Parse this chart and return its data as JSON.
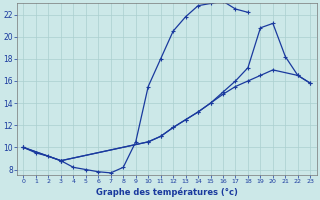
{
  "xlabel": "Graphe des températures (°c)",
  "bg_color": "#cce8e8",
  "line_color": "#1a3a9e",
  "grid_color": "#aacfcf",
  "axis_label_color": "#1a3a9e",
  "xlim": [
    -0.5,
    23.5
  ],
  "ylim": [
    7.5,
    23.0
  ],
  "xticks": [
    0,
    1,
    2,
    3,
    4,
    5,
    6,
    7,
    8,
    9,
    10,
    11,
    12,
    13,
    14,
    15,
    16,
    17,
    18,
    19,
    20,
    21,
    22,
    23
  ],
  "yticks": [
    8,
    10,
    12,
    14,
    16,
    18,
    20,
    22
  ],
  "series": [
    {
      "x": [
        0,
        1,
        2,
        3,
        4,
        5,
        6,
        7,
        8,
        9,
        10,
        11,
        12,
        13,
        14,
        15,
        16,
        17,
        18,
        19,
        20,
        21,
        22,
        23
      ],
      "y": [
        10.0,
        9.5,
        9.2,
        8.8,
        8.2,
        8.0,
        7.8,
        7.7,
        8.2,
        10.5,
        15.5,
        18.0,
        20.5,
        21.8,
        22.8,
        23.0,
        23.2,
        22.5,
        22.2,
        null,
        null,
        null,
        null,
        null
      ]
    },
    {
      "x": [
        0,
        3,
        10,
        11,
        12,
        13,
        14,
        15,
        16,
        17,
        18,
        19,
        20,
        21,
        22,
        23
      ],
      "y": [
        10.0,
        8.8,
        10.5,
        11.0,
        11.8,
        12.5,
        13.2,
        14.0,
        15.0,
        16.0,
        17.2,
        20.8,
        21.2,
        18.2,
        16.5,
        15.8
      ]
    },
    {
      "x": [
        0,
        3,
        10,
        11,
        12,
        13,
        14,
        15,
        16,
        17,
        18,
        19,
        20,
        21,
        22,
        23
      ],
      "y": [
        10.0,
        8.8,
        10.5,
        11.0,
        11.8,
        12.5,
        13.2,
        14.0,
        14.8,
        15.5,
        16.0,
        16.5,
        17.0,
        null,
        16.5,
        15.8
      ]
    }
  ]
}
